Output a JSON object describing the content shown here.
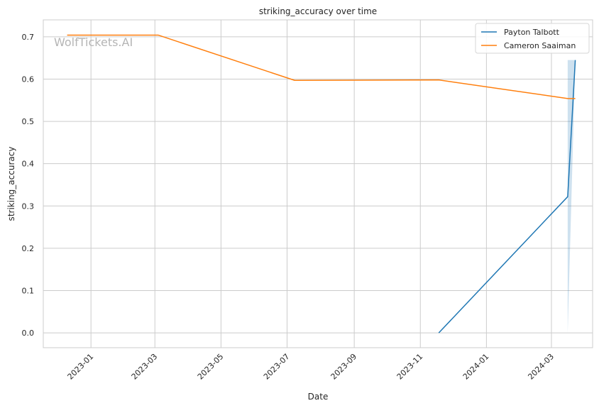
{
  "chart_data": {
    "type": "line",
    "title": "striking_accuracy over time",
    "xlabel": "Date",
    "ylabel": "striking_accuracy",
    "watermark": "WolfTickets.AI",
    "x_ticks": [
      "2023-01",
      "2023-03",
      "2023-05",
      "2023-07",
      "2023-09",
      "2023-11",
      "2024-01",
      "2024-03"
    ],
    "y_ticks": [
      0.0,
      0.1,
      0.2,
      0.3,
      0.4,
      0.5,
      0.6,
      0.7
    ],
    "y_tick_labels": [
      "0.0",
      "0.1",
      "0.2",
      "0.3",
      "0.4",
      "0.5",
      "0.6",
      "0.7"
    ],
    "xlim": [
      "2022-11-18",
      "2024-04-08"
    ],
    "ylim": [
      -0.035,
      0.74
    ],
    "grid": true,
    "legend_position": "top-right",
    "series": [
      {
        "name": "Payton Talbott",
        "color": "#1f77b4",
        "points": [
          {
            "x": "2023-11-18",
            "y": 0.0
          },
          {
            "x": "2024-03-16",
            "y": 0.322
          },
          {
            "x": "2024-03-23",
            "y": 0.645
          }
        ],
        "band": [
          {
            "x": "2024-03-16",
            "low": 0.0,
            "high": 0.645
          },
          {
            "x": "2024-03-23",
            "low": 0.645,
            "high": 0.645
          }
        ]
      },
      {
        "name": "Cameron Saaiman",
        "color": "#ff7f0e",
        "points": [
          {
            "x": "2022-12-10",
            "y": 0.704
          },
          {
            "x": "2023-03-04",
            "y": 0.704
          },
          {
            "x": "2023-07-08",
            "y": 0.597
          },
          {
            "x": "2023-11-18",
            "y": 0.598
          },
          {
            "x": "2024-03-16",
            "y": 0.554
          },
          {
            "x": "2024-03-23",
            "y": 0.554
          }
        ]
      }
    ]
  }
}
